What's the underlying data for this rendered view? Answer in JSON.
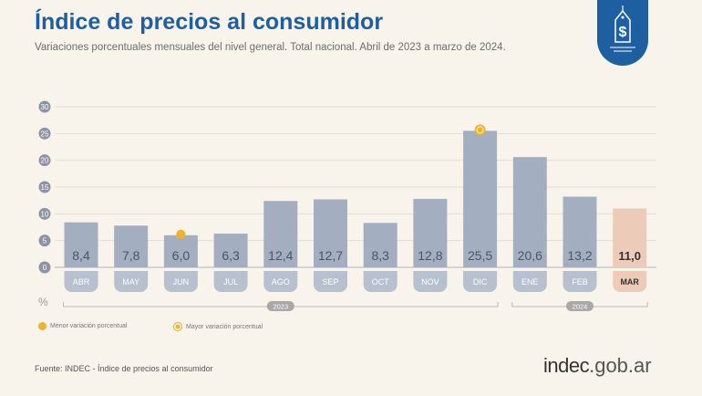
{
  "header": {
    "title": "Índice de precios al consumidor",
    "subtitle": "Variaciones porcentuales mensuales del nivel general. Total nacional. Abril de 2023 a marzo de 2024.",
    "badge_icon": "price-tag-dollar-icon"
  },
  "chart_data": {
    "type": "bar",
    "categories": [
      "ABR",
      "MAY",
      "JUN",
      "JUL",
      "AGO",
      "SEP",
      "OCT",
      "NOV",
      "DIC",
      "ENE",
      "FEB",
      "MAR"
    ],
    "values": [
      8.4,
      7.8,
      6.0,
      6.3,
      12.4,
      12.7,
      8.3,
      12.8,
      25.5,
      20.6,
      13.2,
      11.0
    ],
    "labels": [
      "8,4",
      "7,8",
      "6,0",
      "6,3",
      "12,4",
      "12,7",
      "8,3",
      "12,8",
      "25,5",
      "20,6",
      "13,2",
      "11,0"
    ],
    "ylabel": "%",
    "ylim": [
      0,
      30
    ],
    "yticks": [
      "0",
      "5",
      "10",
      "15",
      "20",
      "25",
      "30"
    ],
    "grid": true,
    "years": [
      {
        "label": "2023",
        "from": "ABR",
        "to": "DIC"
      },
      {
        "label": "2024",
        "from": "ENE",
        "to": "MAR"
      }
    ],
    "highlights": {
      "min": "JUN",
      "max": "DIC",
      "current": "MAR"
    },
    "colors": {
      "bar": "#a3afc0",
      "current": "#eccbb8",
      "marker": "#f2b12a",
      "axis": "#8d93a3",
      "label_text": "#4a5568"
    }
  },
  "legend": [
    {
      "label": "Menor variación porcentual"
    },
    {
      "label": "Mayor variación porcentual"
    }
  ],
  "footer": {
    "source": "Fuente: INDEC - Índice de precios al consumidor",
    "logo_main": "indec",
    "logo_suffix": ".gob.ar"
  }
}
